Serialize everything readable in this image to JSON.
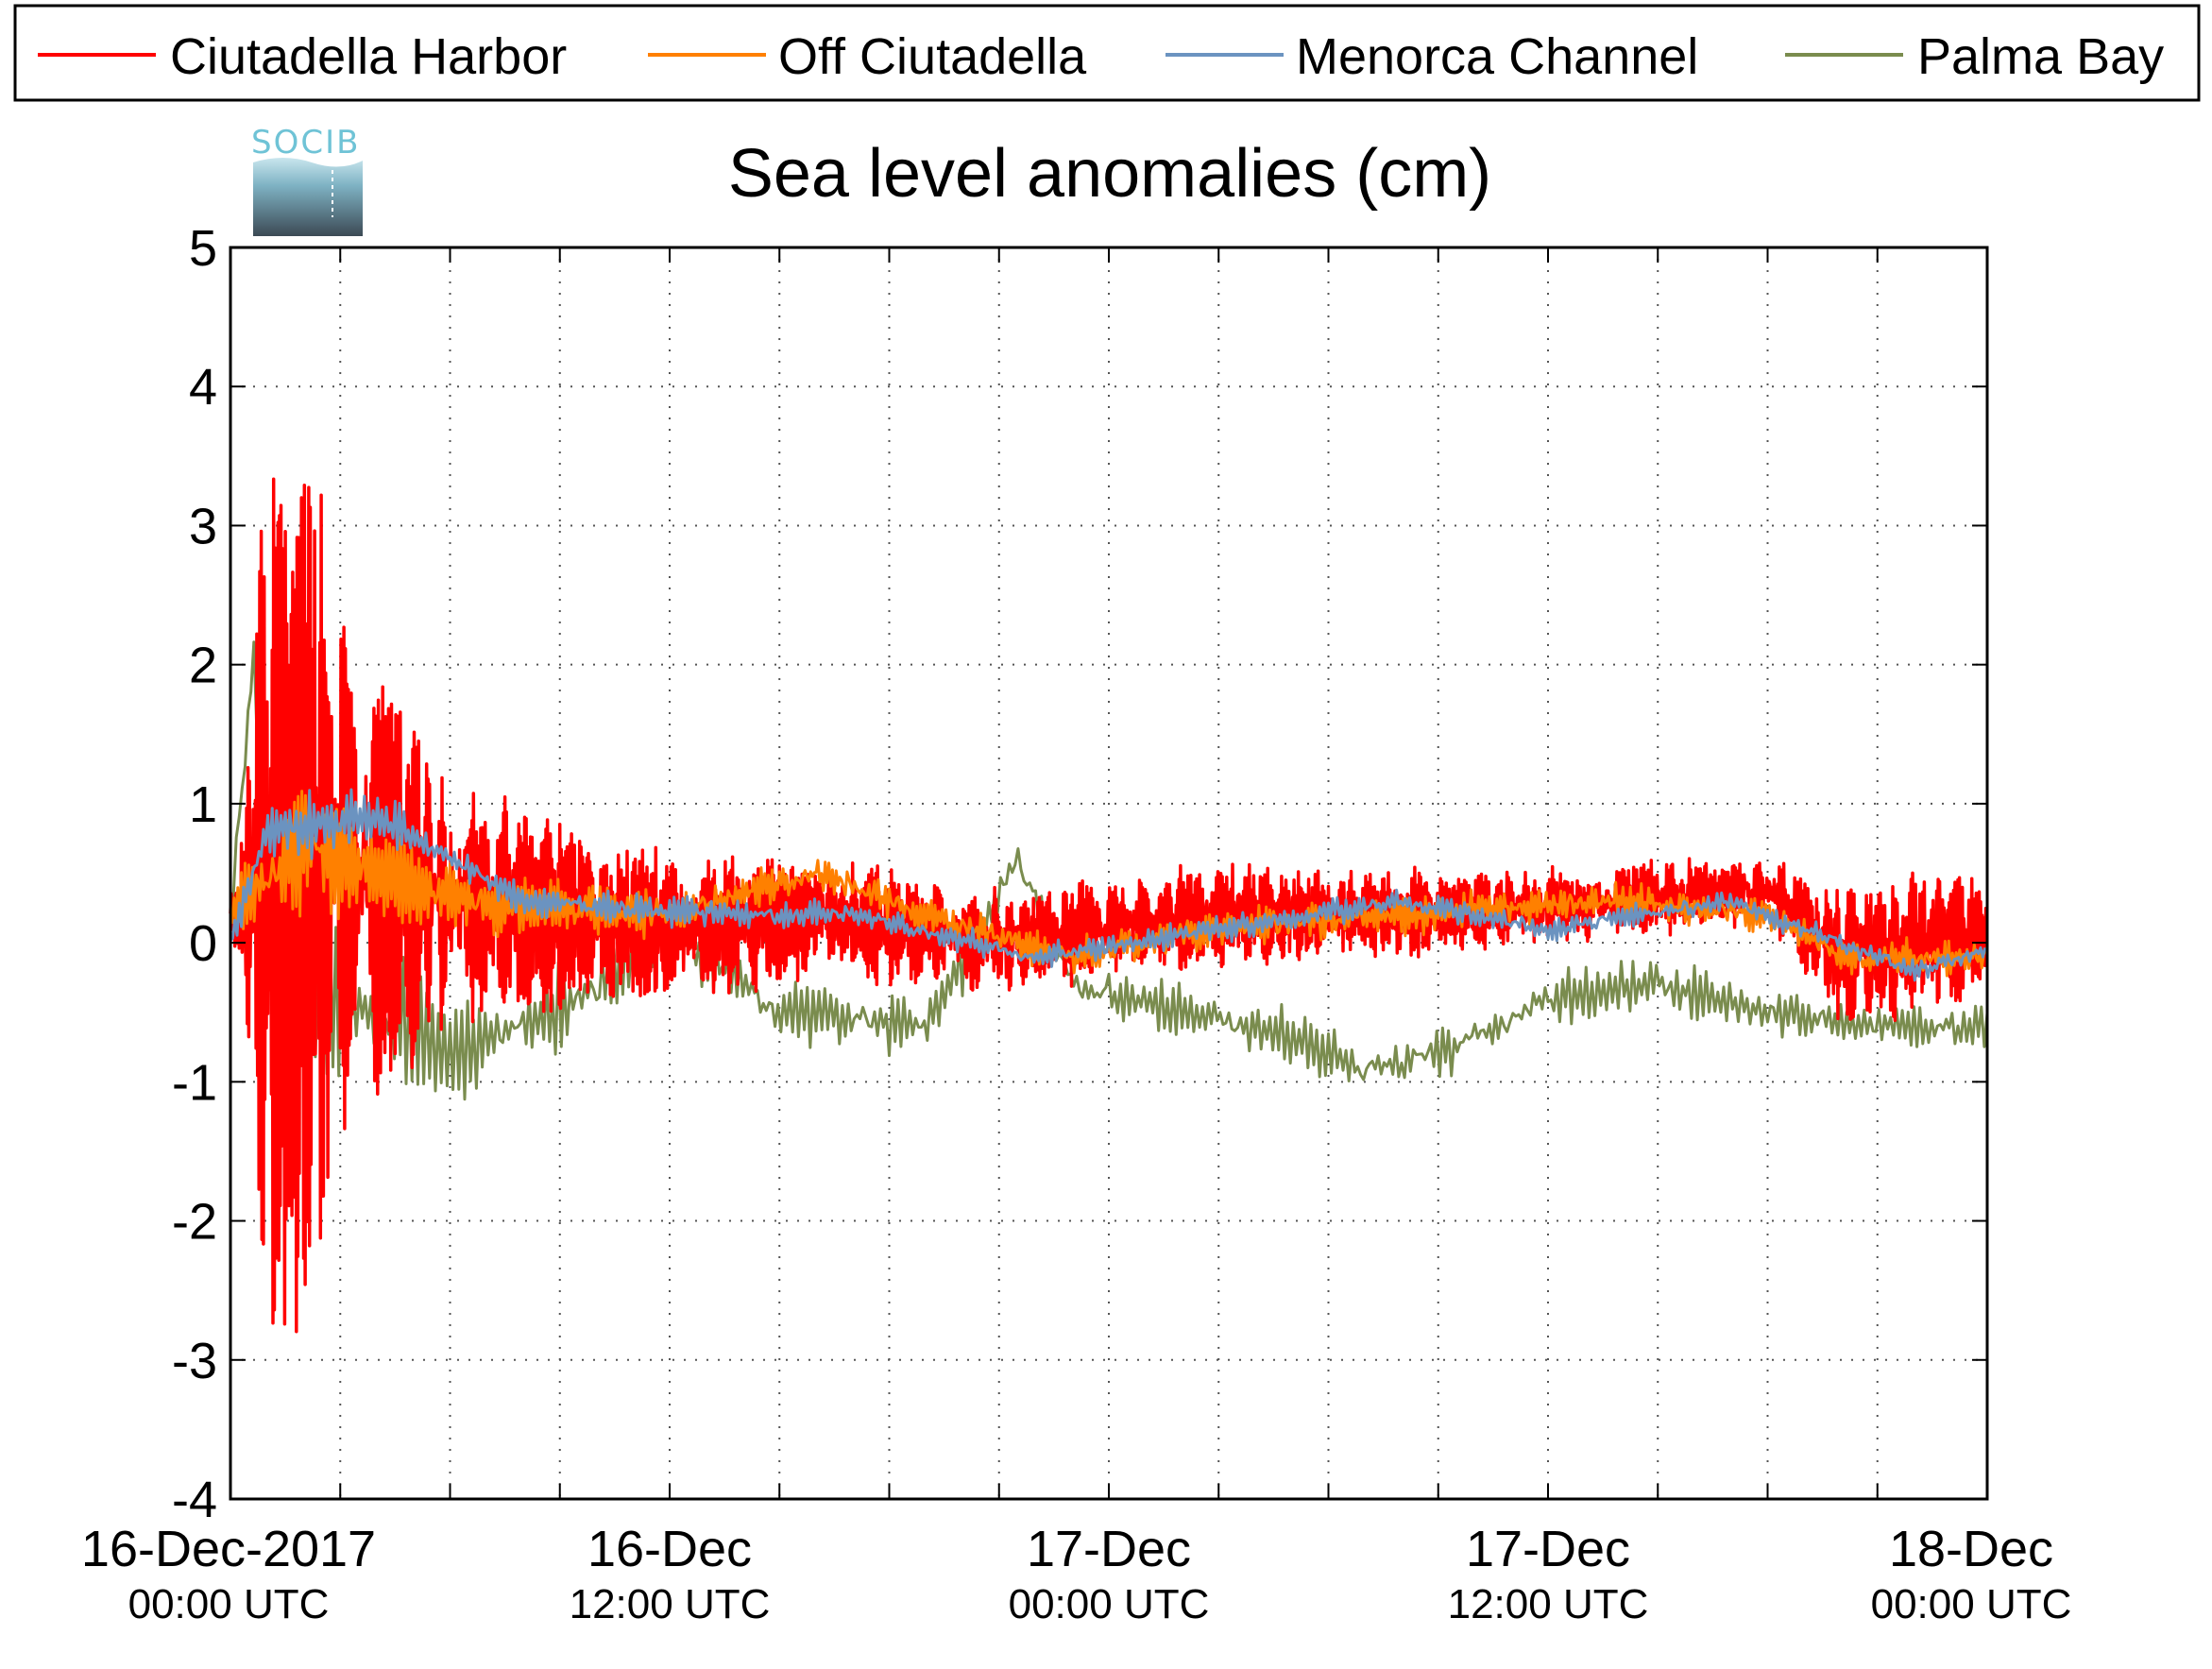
{
  "chart_data": {
    "type": "line",
    "title": "Sea level anomalies (cm)",
    "xlabel": "",
    "ylabel": "",
    "ylim": [
      -4,
      5
    ],
    "yticks": [
      "5",
      "4",
      "3",
      "2",
      "1",
      "0",
      "-1",
      "-2",
      "-3",
      "-4"
    ],
    "xlim_hours": [
      0,
      48
    ],
    "xticks": [
      {
        "date": "16-Dec-2017",
        "time": "00:00 UTC"
      },
      {
        "date": "16-Dec",
        "time": "12:00 UTC"
      },
      {
        "date": "17-Dec",
        "time": "00:00 UTC"
      },
      {
        "date": "17-Dec",
        "time": "12:00 UTC"
      },
      {
        "date": "18-Dec",
        "time": "00:00 UTC"
      }
    ],
    "grid": true,
    "legend_position": "top",
    "series": [
      {
        "name": "Ciutadella Harbor",
        "color": "#ff0000"
      },
      {
        "name": "Off Ciutadella",
        "color": "#ff8000"
      },
      {
        "name": "Menorca Channel",
        "color": "#6b93c0"
      },
      {
        "name": "Palma Bay",
        "color": "#7a8c4e"
      }
    ]
  },
  "logo": {
    "text": "SOCIB"
  }
}
